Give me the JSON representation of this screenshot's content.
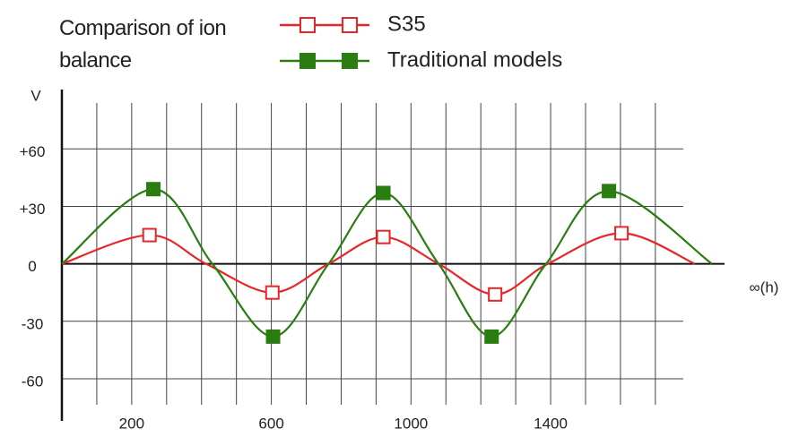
{
  "chart_data": {
    "type": "line",
    "title": "Comparison of ion balance",
    "y_label": "V",
    "x_label": "∞(h)",
    "xlim": [
      0,
      1780
    ],
    "ylim": [
      -82,
      91
    ],
    "xticks": [
      200,
      600,
      1000,
      1400
    ],
    "x_grid_lines": [
      100,
      200,
      300,
      400,
      500,
      600,
      700,
      800,
      900,
      1000,
      1100,
      1200,
      1300,
      1400,
      1500,
      1600,
      1700
    ],
    "yticks": [
      {
        "value": 60,
        "label": "+60"
      },
      {
        "value": 30,
        "label": "+30"
      },
      0,
      -30,
      -60
    ],
    "grid": true,
    "series": [
      {
        "name": "S35",
        "color": "#e8262a",
        "marker": "open-square",
        "x": [
          0,
          251,
          413,
          603,
          764,
          921,
          1079,
          1241,
          1392,
          1603,
          1813
        ],
        "values": [
          0,
          15,
          0,
          -15,
          0,
          14,
          0,
          -16,
          0,
          16,
          0
        ]
      },
      {
        "name": "Traditional models",
        "color": "#2a7d10",
        "marker": "filled-square",
        "x": [
          0,
          262,
          431,
          605,
          764,
          921,
          1079,
          1231,
          1387,
          1567,
          1862
        ],
        "values": [
          0,
          39,
          0,
          -38,
          0,
          37,
          0,
          -38,
          0,
          38,
          0
        ]
      }
    ]
  }
}
